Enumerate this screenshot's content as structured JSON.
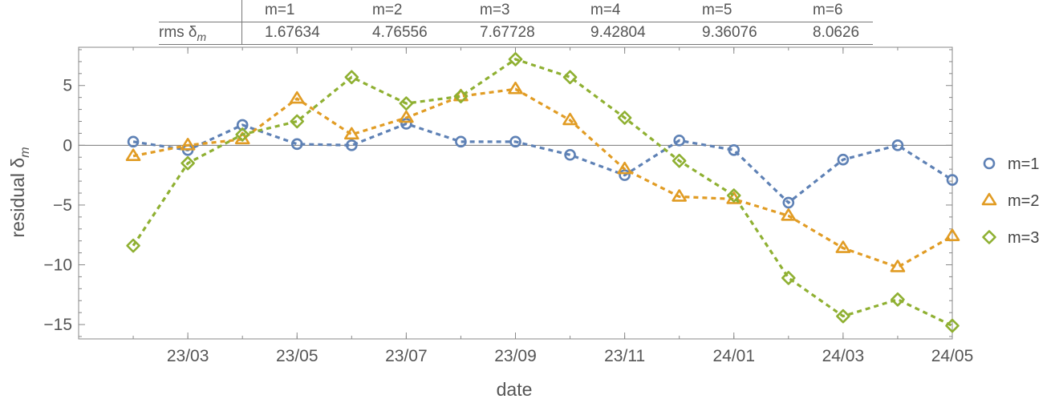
{
  "rms_table": {
    "row_header_label": "rms δ",
    "row_header_sub": "m",
    "columns": [
      "m=1",
      "m=2",
      "m=3",
      "m=4",
      "m=5",
      "m=6"
    ],
    "values": [
      "1.67634",
      "4.76556",
      "7.67728",
      "9.42804",
      "9.36076",
      "8.0626"
    ]
  },
  "chart_data": {
    "type": "line",
    "xlabel": "date",
    "ylabel_main": "residual δ",
    "ylabel_sub": "m",
    "x": [
      "2023-02",
      "2023-03",
      "2023-04",
      "2023-05",
      "2023-06",
      "2023-07",
      "2023-08",
      "2023-09",
      "2023-10",
      "2023-11",
      "2023-12",
      "2024-01",
      "2024-02",
      "2024-03",
      "2024-04",
      "2024-05"
    ],
    "x_tick_labels": [
      "23/03",
      "23/05",
      "23/07",
      "23/09",
      "23/11",
      "24/01",
      "24/03",
      "24/05"
    ],
    "x_tick_dates": [
      "2023-03",
      "2023-05",
      "2023-07",
      "2023-09",
      "2023-11",
      "2024-01",
      "2024-03",
      "2024-05"
    ],
    "xlim": [
      "2023-01",
      "2024-05"
    ],
    "ylim": [
      -16.2,
      8.2
    ],
    "y_ticks": [
      5,
      0,
      -5,
      -10,
      -15
    ],
    "y_tick_labels": [
      "5",
      "0",
      "−5",
      "−10",
      "−15"
    ],
    "grid": false,
    "zero_line": true,
    "legend_position": "right",
    "series": [
      {
        "name": "m=1",
        "marker": "circle",
        "color": "#5e81b5",
        "values": [
          0.3,
          -0.4,
          1.7,
          0.1,
          0.0,
          1.8,
          0.3,
          0.3,
          -0.8,
          -2.5,
          0.4,
          -0.4,
          -4.8,
          -1.2,
          0.0,
          -2.9
        ]
      },
      {
        "name": "m=2",
        "marker": "triangle",
        "color": "#e19c24",
        "values": [
          -0.9,
          0.0,
          0.5,
          3.9,
          0.9,
          2.3,
          4.1,
          4.7,
          2.1,
          -2.0,
          -4.3,
          -4.5,
          -5.9,
          -8.6,
          -10.2,
          -7.6
        ]
      },
      {
        "name": "m=3",
        "marker": "diamond",
        "color": "#8fb032",
        "values": [
          -8.4,
          -1.5,
          0.9,
          2.0,
          5.7,
          3.5,
          4.1,
          7.2,
          5.7,
          2.3,
          -1.3,
          -4.2,
          -11.1,
          -14.3,
          -12.9,
          -15.1
        ]
      }
    ]
  }
}
